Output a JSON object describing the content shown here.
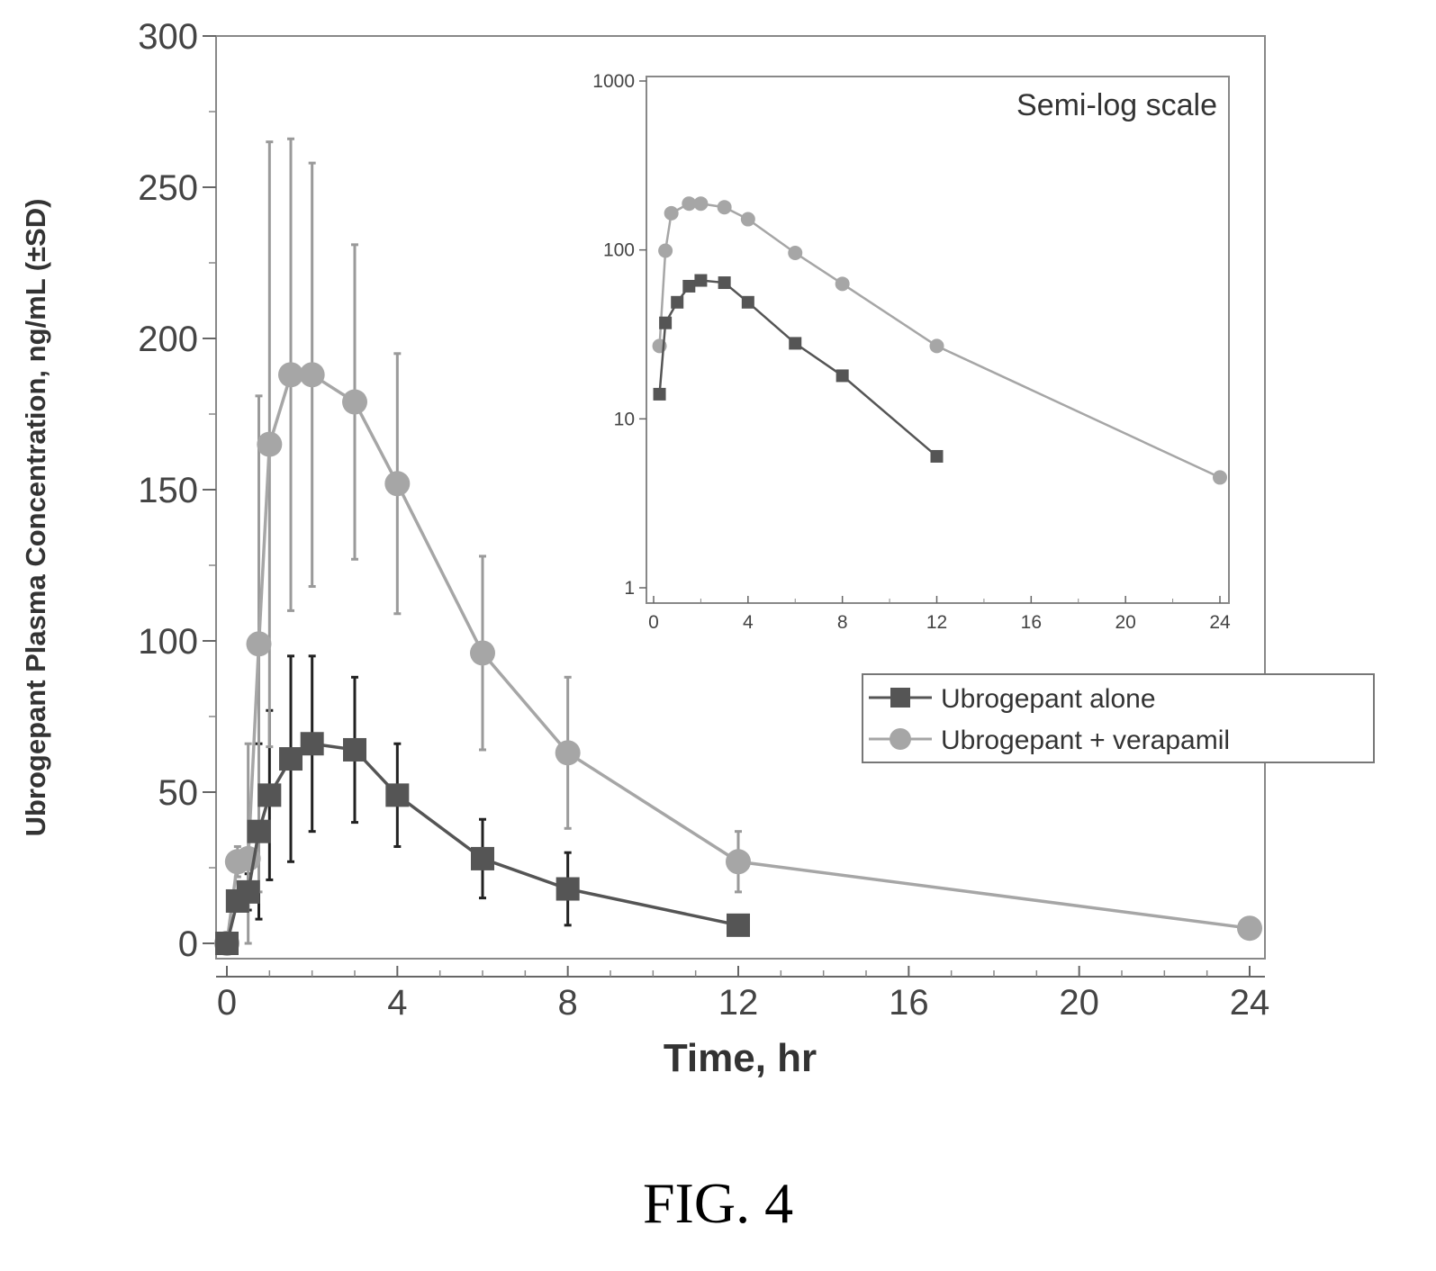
{
  "caption": "FIG. 4",
  "legend": {
    "alone": "Ubrogepant alone",
    "verapamil": "Ubrogepant + verapamil"
  },
  "colors": {
    "alone": "#555555",
    "verapamil": "#a6a6a6",
    "errorbar": "#222222",
    "axis": "#888888"
  },
  "chart_data": [
    {
      "type": "line",
      "xlabel": "Time, hr",
      "ylabel": "Ubrogepant Plasma Concentration, ng/mL (±SD)",
      "xlim": [
        0,
        24
      ],
      "ylim": [
        0,
        300
      ],
      "xticks": [
        "0",
        "4",
        "8",
        "12",
        "16",
        "20",
        "24"
      ],
      "yticks": [
        "0",
        "50",
        "100",
        "150",
        "200",
        "250",
        "300"
      ],
      "error_bars": "±SD",
      "series": [
        {
          "name": "Ubrogepant alone",
          "marker": "square",
          "x": [
            0,
            0.25,
            0.5,
            0.75,
            1,
            1.5,
            2,
            3,
            4,
            6,
            8,
            12
          ],
          "y": [
            0,
            14,
            17,
            37,
            49,
            61,
            66,
            64,
            49,
            28,
            18,
            6
          ],
          "sd": [
            0,
            3,
            6,
            29,
            28,
            34,
            29,
            24,
            17,
            13,
            12,
            0
          ]
        },
        {
          "name": "Ubrogepant + verapamil",
          "marker": "circle",
          "x": [
            0,
            0.25,
            0.5,
            0.75,
            1,
            1.5,
            2,
            3,
            4,
            6,
            8,
            12,
            24
          ],
          "y": [
            0,
            27,
            28,
            99,
            165,
            188,
            188,
            179,
            152,
            96,
            63,
            27,
            5
          ],
          "sd": [
            0,
            5,
            38,
            82,
            100,
            78,
            70,
            52,
            43,
            32,
            25,
            10,
            0
          ]
        }
      ]
    },
    {
      "type": "line",
      "title": "Semi-log scale",
      "xlim": [
        0,
        24
      ],
      "ylim": [
        1,
        1000
      ],
      "yscale": "log",
      "xticks": [
        "0",
        "4",
        "8",
        "12",
        "16",
        "20",
        "24"
      ],
      "yticks": [
        "1",
        "10",
        "100",
        "1000"
      ],
      "series": [
        {
          "name": "Ubrogepant alone",
          "marker": "square",
          "x": [
            0.25,
            0.5,
            1,
            1.5,
            2,
            3,
            4,
            6,
            8,
            12
          ],
          "y": [
            14,
            37,
            49,
            61,
            66,
            64,
            49,
            28,
            18,
            6
          ]
        },
        {
          "name": "Ubrogepant + verapamil",
          "marker": "circle",
          "x": [
            0.25,
            0.5,
            0.75,
            1.5,
            2,
            3,
            4,
            6,
            8,
            12,
            24
          ],
          "y": [
            27,
            99,
            165,
            188,
            188,
            179,
            152,
            96,
            63,
            27,
            4.5
          ]
        }
      ]
    }
  ]
}
